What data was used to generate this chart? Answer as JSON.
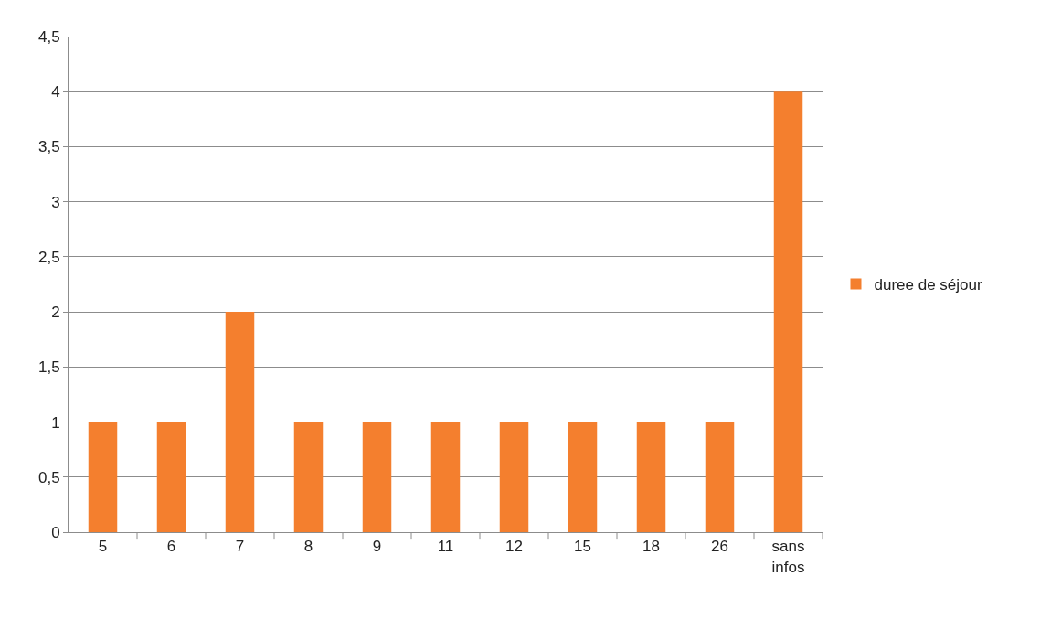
{
  "chart_data": {
    "type": "bar",
    "categories": [
      "5",
      "6",
      "7",
      "8",
      "9",
      "11",
      "12",
      "15",
      "18",
      "26",
      "sans infos"
    ],
    "series": [
      {
        "name": "duree de séjour",
        "color": "#f47f2e",
        "values": [
          1,
          1,
          2,
          1,
          1,
          1,
          1,
          1,
          1,
          1,
          4
        ]
      }
    ],
    "ylim": [
      0,
      4.5
    ],
    "yticks": [
      0,
      {
        "value": 0.5,
        "label": "0,5"
      },
      1,
      {
        "value": 1.5,
        "label": "1,5"
      },
      2,
      {
        "value": 2.5,
        "label": "2,5"
      },
      3,
      {
        "value": 3.5,
        "label": "3,5"
      },
      4,
      {
        "value": 4.5,
        "label": "4,5"
      }
    ],
    "grid": "y",
    "legend": "right"
  }
}
